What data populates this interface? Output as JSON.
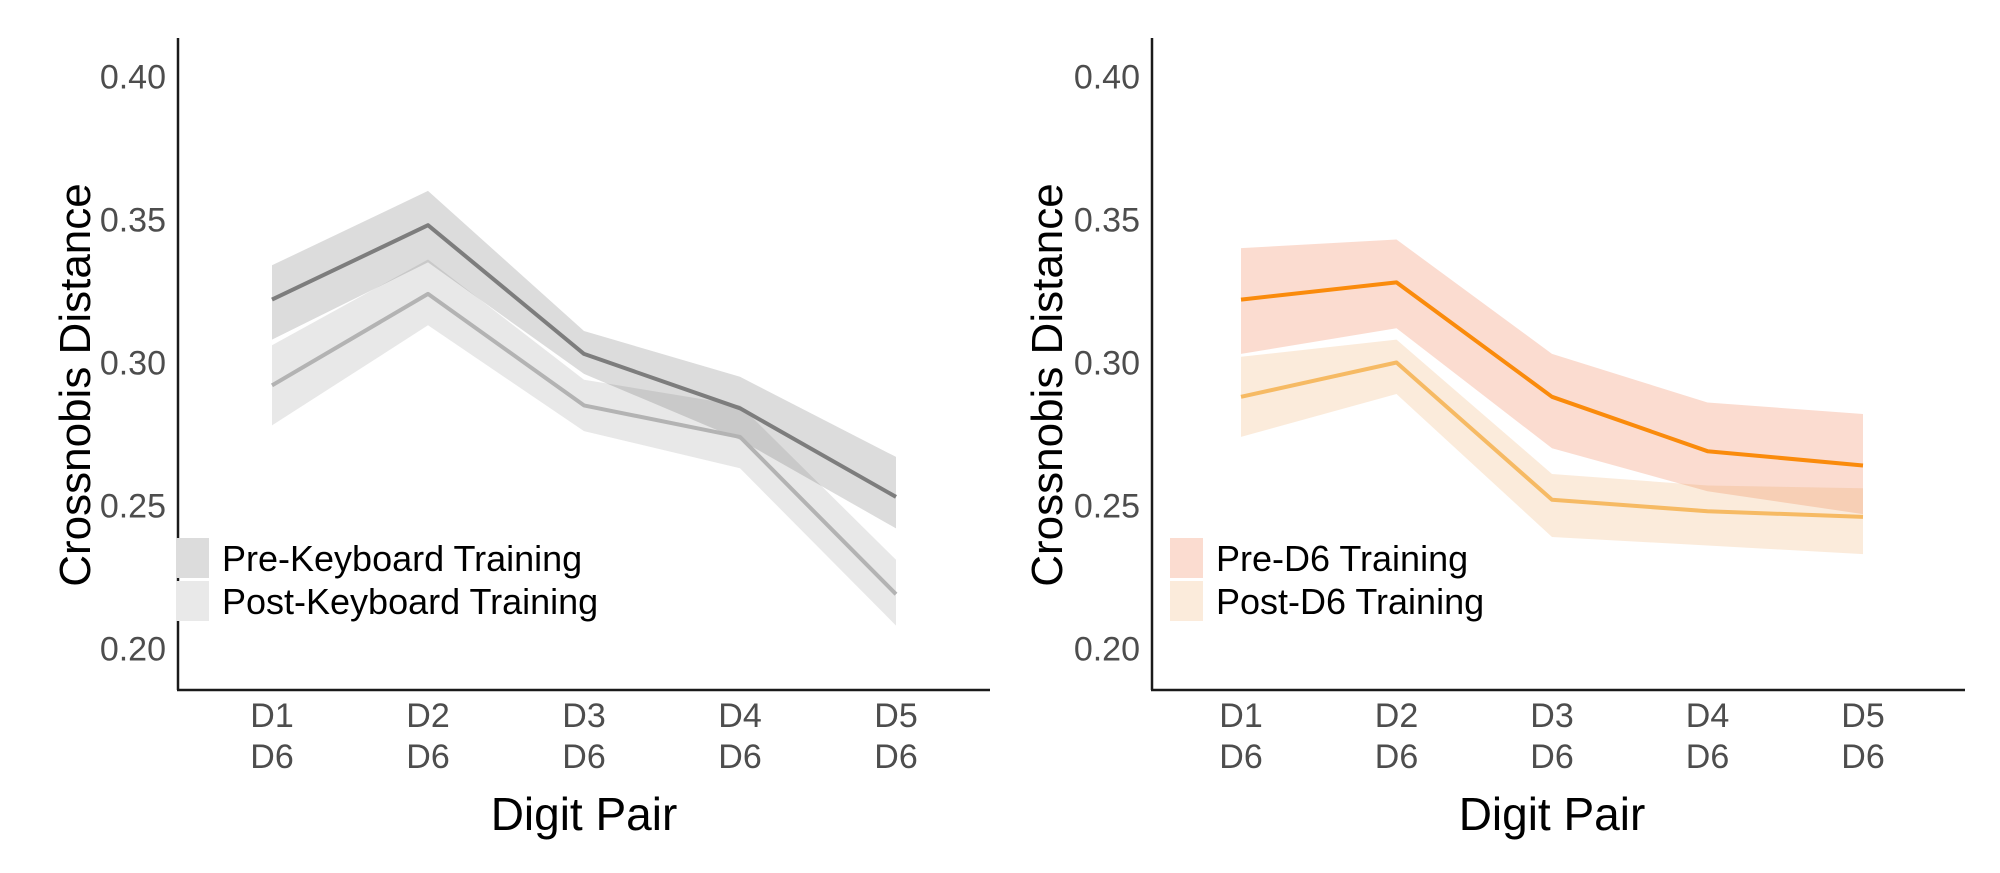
{
  "figure": {
    "background": "#ffffff",
    "axis_color": "#1a1a1a",
    "tick_label_color": "#4d4d4d",
    "title_color": "#000000",
    "legend_text_color": "#000000"
  },
  "chart_data": [
    {
      "type": "line",
      "panel": "left",
      "title": "",
      "xlabel": "Digit Pair",
      "ylabel": "Crossnobis Distance",
      "x_ticks_line1": [
        "D1",
        "D2",
        "D3",
        "D4",
        "D5"
      ],
      "x_ticks_line2": [
        "D6",
        "D6",
        "D6",
        "D6",
        "D6"
      ],
      "y_tick_labels": [
        "0.40",
        "0.35",
        "0.30",
        "0.25",
        "0.20"
      ],
      "y_tick_values": [
        0.4,
        0.35,
        0.3,
        0.25,
        0.2
      ],
      "ylim": [
        0.185,
        0.414
      ],
      "grid": false,
      "legend_position": "inside-bottom-left",
      "series": [
        {
          "name": "Pre-Keyboard Training",
          "line_color": "#7d7d7d",
          "ribbon_fill": "rgba(80,80,80,0.20)",
          "swatch": "#dcdcdc",
          "values": [
            0.322,
            0.348,
            0.303,
            0.284,
            0.253
          ],
          "upper": [
            0.334,
            0.36,
            0.311,
            0.295,
            0.267
          ],
          "lower": [
            0.308,
            0.335,
            0.296,
            0.273,
            0.242
          ]
        },
        {
          "name": "Post-Keyboard Training",
          "line_color": "#b3b3b3",
          "ribbon_fill": "rgba(80,80,80,0.13)",
          "swatch": "#e9e9e9",
          "values": [
            0.292,
            0.324,
            0.285,
            0.274,
            0.219
          ],
          "upper": [
            0.306,
            0.336,
            0.294,
            0.285,
            0.231
          ],
          "lower": [
            0.278,
            0.313,
            0.276,
            0.263,
            0.208
          ]
        }
      ]
    },
    {
      "type": "line",
      "panel": "right",
      "title": "",
      "xlabel": "Digit Pair",
      "ylabel": "Crossnobis Distance",
      "x_ticks_line1": [
        "D1",
        "D2",
        "D3",
        "D4",
        "D5"
      ],
      "x_ticks_line2": [
        "D6",
        "D6",
        "D6",
        "D6",
        "D6"
      ],
      "y_tick_labels": [
        "0.40",
        "0.35",
        "0.30",
        "0.25",
        "0.20"
      ],
      "y_tick_values": [
        0.4,
        0.35,
        0.3,
        0.25,
        0.2
      ],
      "ylim": [
        0.185,
        0.414
      ],
      "grid": false,
      "legend_position": "inside-bottom-left",
      "series": [
        {
          "name": "Pre-D6 Training",
          "line_color": "#fa8b0c",
          "ribbon_fill": "rgba(235,80,20,0.20)",
          "swatch": "#fbdcd0",
          "values": [
            0.322,
            0.328,
            0.288,
            0.269,
            0.264
          ],
          "upper": [
            0.34,
            0.343,
            0.303,
            0.286,
            0.282
          ],
          "lower": [
            0.303,
            0.312,
            0.27,
            0.255,
            0.247
          ]
        },
        {
          "name": "Post-D6 Training",
          "line_color": "#f6ba64",
          "ribbon_fill": "rgba(235,155,75,0.20)",
          "swatch": "#fbebdb",
          "values": [
            0.288,
            0.3,
            0.252,
            0.248,
            0.246
          ],
          "upper": [
            0.302,
            0.308,
            0.261,
            0.257,
            0.256
          ],
          "lower": [
            0.274,
            0.289,
            0.239,
            0.236,
            0.233
          ]
        }
      ]
    }
  ]
}
